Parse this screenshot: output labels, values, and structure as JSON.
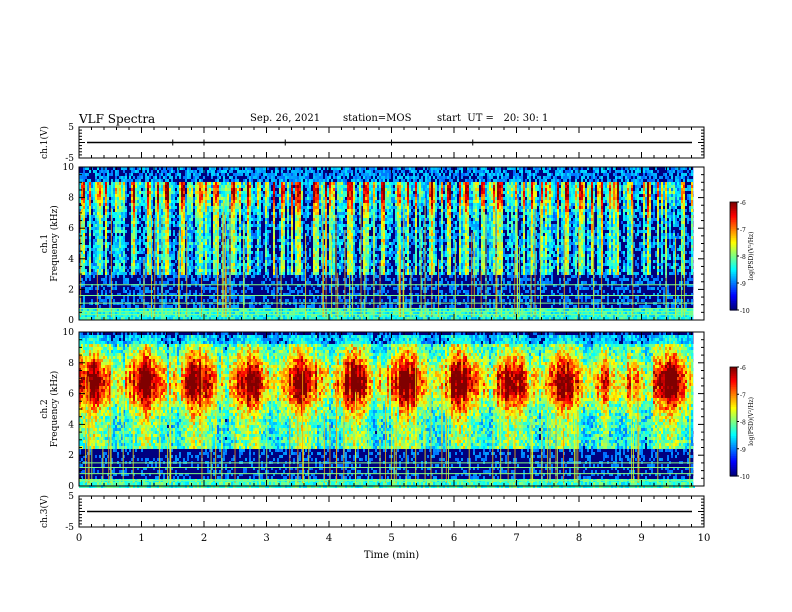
{
  "header": {
    "title": "VLF Spectra",
    "date": "Sep. 26, 2021",
    "station": "station=MOS",
    "start": "start  UT =   20: 30: 1"
  },
  "chart_data": [
    {
      "type": "line",
      "name": "ch1-waveform",
      "ylabel": "ch.1(V)",
      "xlim": [
        0,
        10
      ],
      "ylim": [
        -5,
        5
      ],
      "yticks": [
        "5",
        "-5"
      ],
      "trace_level": 0,
      "spikes_min": [
        1.5,
        2.0,
        3.3,
        5.0,
        6.3
      ]
    },
    {
      "type": "heatmap",
      "name": "ch1-spectrogram",
      "ylabel": "ch.1\nFrequency (kHz)",
      "xlim": [
        0,
        10
      ],
      "ylim": [
        0,
        10
      ],
      "yticks": [
        "0",
        "2",
        "4",
        "6",
        "8",
        "10"
      ],
      "data_end_min": 9.83,
      "colorbar": {
        "label": "log(PSD)(V²/Hz)",
        "range": [
          -10,
          -6
        ],
        "ticks": [
          "-6",
          "-7",
          "-8",
          "-9",
          "-10"
        ]
      },
      "noise_lines_khz": [
        0.35,
        0.55,
        0.75,
        1.1,
        1.6,
        2.3
      ],
      "active_band_khz": [
        3,
        9
      ],
      "peak_khz": 8.5
    },
    {
      "type": "heatmap",
      "name": "ch2-spectrogram",
      "ylabel": "ch.2\nFrequency (kHz)",
      "xlim": [
        0,
        10
      ],
      "ylim": [
        0,
        10
      ],
      "yticks": [
        "0",
        "2",
        "4",
        "6",
        "8",
        "10"
      ],
      "data_end_min": 9.83,
      "colorbar": {
        "label": "log(PSD)(V²/Hz)",
        "range": [
          -10,
          -6
        ],
        "ticks": [
          "-6",
          "-7",
          "-8",
          "-9",
          "-10"
        ]
      },
      "noise_lines_khz": [
        0.35,
        0.8,
        1.2,
        1.5
      ],
      "active_band_khz": [
        3,
        9.5
      ],
      "peak_khz": 6.8
    },
    {
      "type": "line",
      "name": "ch3-waveform",
      "ylabel": "ch.3(V)",
      "xlabel": "Time (min)",
      "xlim": [
        0,
        10
      ],
      "ylim": [
        -5,
        5
      ],
      "yticks": [
        "5",
        "-5"
      ],
      "xticks": [
        "0",
        "1",
        "2",
        "3",
        "4",
        "5",
        "6",
        "7",
        "8",
        "9",
        "10"
      ],
      "trace_level": 0
    }
  ]
}
